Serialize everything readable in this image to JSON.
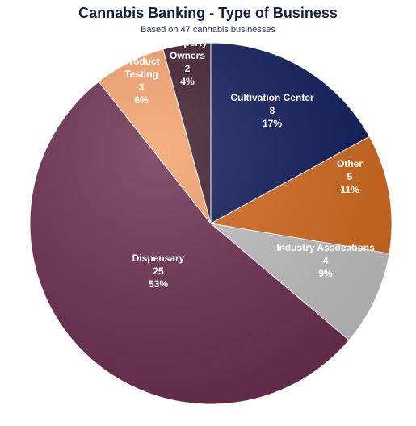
{
  "chart_data": {
    "type": "pie",
    "title": "Cannabis Banking - Type of Business",
    "subtitle": "Based on 47 cannabis businesses",
    "slices": [
      {
        "label": "Cultivation Center",
        "label_lines": [
          "Cultivation Center"
        ],
        "value": 8,
        "value_text": "8",
        "percent_text": "17%",
        "color": "#0d1b59",
        "text_color": "#ffffff"
      },
      {
        "label": "Other",
        "label_lines": [
          "Other"
        ],
        "value": 5,
        "value_text": "5",
        "percent_text": "11%",
        "color": "#d2691e",
        "text_color": "#ffffff"
      },
      {
        "label": "Industry Assocations",
        "label_lines": [
          "Industry Assocations"
        ],
        "value": 4,
        "value_text": "4",
        "percent_text": "9%",
        "color": "#c0c0c0",
        "text_color": "#ffffff"
      },
      {
        "label": "Dispensary",
        "label_lines": [
          "Dispensary"
        ],
        "value": 25,
        "value_text": "25",
        "percent_text": "53%",
        "color": "#6b2d4f",
        "text_color": "#ffffff"
      },
      {
        "label": "Product Testing",
        "label_lines": [
          "Product",
          "Testing"
        ],
        "value": 3,
        "value_text": "3",
        "percent_text": "6%",
        "color": "#f4a068",
        "text_color": "#ffffff"
      },
      {
        "label": "Property Owners",
        "label_lines": [
          "Property",
          "Owners"
        ],
        "value": 2,
        "value_text": "2",
        "percent_text": "4%",
        "color": "#3d1a2b",
        "text_color": "#ffffff"
      }
    ]
  }
}
